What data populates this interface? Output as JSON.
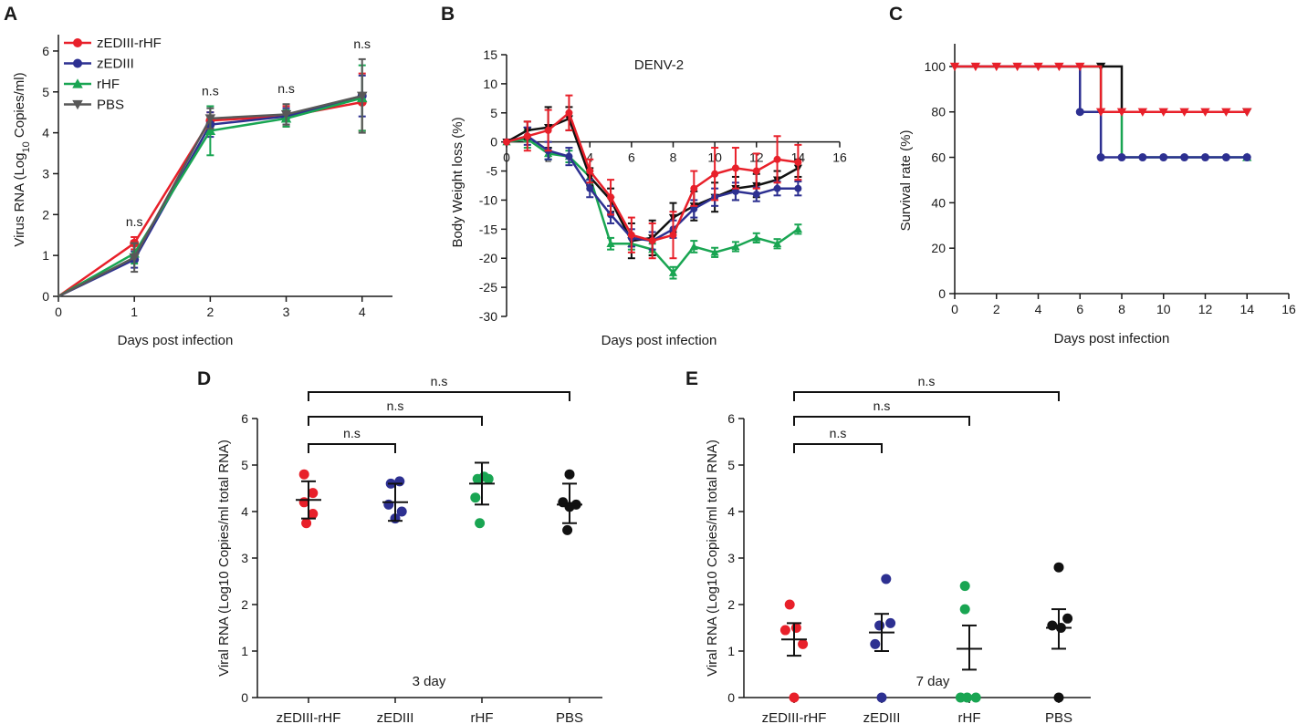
{
  "colors": {
    "red": "#e8202a",
    "blue": "#2d3091",
    "green": "#19a552",
    "gray": "#585858",
    "black": "#111111"
  },
  "chart_data": [
    {
      "panel": "A",
      "type": "line",
      "xlabel": "Days post infection",
      "ylabel_prefix": "Virus RNA (Log",
      "ylabel_sub": "10",
      "ylabel_suffix": " Copies/ml)",
      "xlim": [
        0,
        4.4
      ],
      "ylim": [
        0,
        6.4
      ],
      "xticks": [
        0,
        1,
        2,
        3,
        4
      ],
      "yticks": [
        0,
        1,
        2,
        3,
        4,
        5,
        6
      ],
      "x": [
        0,
        1,
        2,
        3,
        4
      ],
      "series": [
        {
          "name": "zEDIII-rHF",
          "color": "red",
          "marker": "circle",
          "values": [
            0,
            1.3,
            4.3,
            4.4,
            4.75
          ],
          "err": [
            0,
            0.15,
            0.2,
            0.25,
            0.7
          ]
        },
        {
          "name": "zEDIII",
          "color": "blue",
          "marker": "circle",
          "values": [
            0,
            0.9,
            4.2,
            4.4,
            4.9
          ],
          "err": [
            0,
            0.2,
            0.3,
            0.2,
            0.5
          ]
        },
        {
          "name": "rHF",
          "color": "green",
          "marker": "triangle-up",
          "values": [
            0,
            1.05,
            4.05,
            4.35,
            4.85
          ],
          "err": [
            0,
            0.25,
            0.6,
            0.2,
            0.8
          ]
        },
        {
          "name": "PBS",
          "color": "gray",
          "marker": "triangle-down",
          "values": [
            0,
            0.95,
            4.35,
            4.45,
            4.9
          ],
          "err": [
            0,
            0.35,
            0.25,
            0.25,
            0.9
          ]
        }
      ],
      "annotations": [
        {
          "x": 1,
          "text": "n.s"
        },
        {
          "x": 2,
          "text": "n.s"
        },
        {
          "x": 3,
          "text": "n.s"
        },
        {
          "x": 4,
          "text": "n.s"
        }
      ]
    },
    {
      "panel": "B",
      "type": "line",
      "title": "DENV-2",
      "xlabel": "Days post infection",
      "ylabel": "Body Weight loss (%)",
      "xlim": [
        0,
        16
      ],
      "ylim": [
        -30,
        15
      ],
      "xticks": [
        0,
        2,
        4,
        6,
        8,
        10,
        12,
        14,
        16
      ],
      "xtick_labels": [
        "0",
        "2",
        "4",
        "6",
        "8",
        "10",
        "12",
        "14",
        "16"
      ],
      "yticks": [
        -30,
        -25,
        -20,
        -15,
        -10,
        -5,
        0,
        5,
        10,
        15
      ],
      "x": [
        0,
        1,
        2,
        3,
        4,
        5,
        6,
        7,
        8,
        9,
        10,
        11,
        12,
        13,
        14
      ],
      "series": [
        {
          "name": "rHF",
          "color": "green",
          "marker": "triangle-up",
          "values": [
            0,
            0.5,
            -2,
            -2.5,
            -6,
            -17.5,
            -17.5,
            -18.5,
            -22.5,
            -18,
            -19,
            -18,
            -16.5,
            -17.5,
            -15
          ],
          "err": [
            0,
            1.5,
            1,
            1,
            1,
            1,
            1,
            1,
            1,
            1,
            0.8,
            0.8,
            0.8,
            0.8,
            0.8
          ]
        },
        {
          "name": "PBS",
          "color": "black",
          "marker": "triangle-down",
          "values": [
            0,
            2,
            2.5,
            4,
            -6,
            -10,
            -17,
            -16.5,
            -13,
            -11,
            -9.5,
            -8,
            -7.5,
            -6.5,
            -4.5
          ],
          "err": [
            0,
            1.5,
            3.5,
            2,
            1.5,
            2,
            3,
            3,
            2.5,
            2.5,
            2.5,
            2,
            2,
            1.5,
            1.5
          ]
        },
        {
          "name": "zEDIII",
          "color": "blue",
          "marker": "circle",
          "values": [
            0,
            1,
            -1.5,
            -2.5,
            -8,
            -12.5,
            -16.5,
            -17,
            -15,
            -11.5,
            -9.5,
            -8.5,
            -9,
            -8,
            -8
          ],
          "err": [
            0,
            1.5,
            1.5,
            1.5,
            1.5,
            1.5,
            1.5,
            1.5,
            1.5,
            1.5,
            1.5,
            1.5,
            1.2,
            1.2,
            1.2
          ]
        },
        {
          "name": "zEDIII-rHF",
          "color": "red",
          "marker": "circle",
          "values": [
            0,
            1,
            2,
            5,
            -5,
            -9.5,
            -16,
            -17,
            -16,
            -8,
            -5.5,
            -4.5,
            -5,
            -3,
            -3.5
          ],
          "err": [
            0,
            2.5,
            3.5,
            3,
            2,
            3,
            3,
            3,
            4,
            3,
            4.5,
            3.5,
            3,
            4,
            3
          ]
        }
      ]
    },
    {
      "panel": "C",
      "type": "step",
      "xlabel": "Days post infection",
      "ylabel": "Survival rate (%)",
      "xlim": [
        0,
        16
      ],
      "ylim": [
        0,
        110
      ],
      "xticks": [
        0,
        2,
        4,
        6,
        8,
        10,
        12,
        14,
        16
      ],
      "yticks": [
        0,
        20,
        40,
        60,
        80,
        100
      ],
      "series": [
        {
          "name": "PBS",
          "color": "black",
          "marker": "triangle-down",
          "steps": [
            [
              0,
              100
            ],
            [
              8,
              100
            ],
            [
              8,
              80
            ],
            [
              14,
              80
            ]
          ],
          "points": [
            [
              7,
              100
            ],
            [
              14,
              80
            ]
          ]
        },
        {
          "name": "rHF",
          "color": "green",
          "marker": "triangle-up",
          "steps": [
            [
              0,
              100
            ],
            [
              7,
              100
            ],
            [
              7,
              80
            ],
            [
              8,
              80
            ],
            [
              8,
              60
            ],
            [
              14,
              60
            ]
          ],
          "points": [
            [
              14,
              60
            ]
          ]
        },
        {
          "name": "zEDIII",
          "color": "blue",
          "marker": "circle",
          "steps": [
            [
              0,
              100
            ],
            [
              6,
              100
            ],
            [
              6,
              80
            ],
            [
              7,
              80
            ],
            [
              7,
              60
            ],
            [
              14,
              60
            ]
          ],
          "points": [
            [
              6,
              80
            ],
            [
              7,
              60
            ],
            [
              8,
              60
            ],
            [
              9,
              60
            ],
            [
              10,
              60
            ],
            [
              11,
              60
            ],
            [
              12,
              60
            ],
            [
              13,
              60
            ],
            [
              14,
              60
            ]
          ]
        },
        {
          "name": "zEDIII-rHF",
          "color": "red",
          "marker": "triangle-down",
          "steps": [
            [
              0,
              100
            ],
            [
              7,
              100
            ],
            [
              7,
              80
            ],
            [
              14,
              80
            ]
          ],
          "points": [
            [
              0,
              100
            ],
            [
              1,
              100
            ],
            [
              2,
              100
            ],
            [
              3,
              100
            ],
            [
              4,
              100
            ],
            [
              5,
              100
            ],
            [
              6,
              100
            ],
            [
              7,
              80
            ],
            [
              8,
              80
            ],
            [
              9,
              80
            ],
            [
              10,
              80
            ],
            [
              11,
              80
            ],
            [
              12,
              80
            ],
            [
              13,
              80
            ],
            [
              14,
              80
            ]
          ]
        }
      ]
    },
    {
      "panel": "D",
      "type": "scatter",
      "annotation": "3 day",
      "ylabel": "Viral RNA (Log10 Copies/ml total RNA)",
      "ylim": [
        0,
        6
      ],
      "yticks": [
        0,
        1,
        2,
        3,
        4,
        5,
        6
      ],
      "categories": [
        "zEDIII-rHF",
        "zEDIII",
        "rHF",
        "PBS"
      ],
      "category_colors": [
        "red",
        "blue",
        "green",
        "black"
      ],
      "points": [
        [
          {
            "dx": -0.1,
            "y": 4.8
          },
          {
            "dx": 0.1,
            "y": 4.4
          },
          {
            "dx": -0.1,
            "y": 4.2
          },
          {
            "dx": 0.1,
            "y": 3.95
          },
          {
            "dx": -0.05,
            "y": 3.75
          }
        ],
        [
          {
            "dx": -0.1,
            "y": 4.6
          },
          {
            "dx": 0.1,
            "y": 4.65
          },
          {
            "dx": -0.15,
            "y": 4.15
          },
          {
            "dx": 0.15,
            "y": 4.0
          },
          {
            "dx": 0.0,
            "y": 3.85
          }
        ],
        [
          {
            "dx": -0.1,
            "y": 4.7
          },
          {
            "dx": 0.05,
            "y": 4.75
          },
          {
            "dx": 0.15,
            "y": 4.7
          },
          {
            "dx": -0.15,
            "y": 4.3
          },
          {
            "dx": -0.05,
            "y": 3.75
          }
        ],
        [
          {
            "dx": 0.0,
            "y": 4.8
          },
          {
            "dx": -0.15,
            "y": 4.2
          },
          {
            "dx": 0.15,
            "y": 4.15
          },
          {
            "dx": 0.0,
            "y": 4.1
          },
          {
            "dx": -0.05,
            "y": 3.6
          }
        ]
      ],
      "mean": [
        4.25,
        4.2,
        4.6,
        4.15
      ],
      "sem_low": [
        3.85,
        3.8,
        4.15,
        3.75
      ],
      "sem_high": [
        4.65,
        4.6,
        5.05,
        4.6
      ],
      "brackets": [
        {
          "to": 1,
          "text": "n.s"
        },
        {
          "to": 2,
          "text": "n.s"
        },
        {
          "to": 3,
          "text": "n.s"
        }
      ]
    },
    {
      "panel": "E",
      "type": "scatter",
      "annotation": "7 day",
      "ylabel": "Viral RNA (Log10 Copies/ml total RNA)",
      "ylim": [
        0,
        6
      ],
      "yticks": [
        0,
        1,
        2,
        3,
        4,
        5,
        6
      ],
      "categories": [
        "zEDIII-rHF",
        "zEDIII",
        "rHF",
        "PBS"
      ],
      "category_colors": [
        "red",
        "blue",
        "green",
        "black"
      ],
      "points": [
        [
          {
            "dx": -0.1,
            "y": 2.0
          },
          {
            "dx": -0.2,
            "y": 1.45
          },
          {
            "dx": 0.05,
            "y": 1.5
          },
          {
            "dx": 0.2,
            "y": 1.15
          },
          {
            "dx": 0.0,
            "y": 0.0
          }
        ],
        [
          {
            "dx": 0.1,
            "y": 2.55
          },
          {
            "dx": -0.05,
            "y": 1.55
          },
          {
            "dx": 0.2,
            "y": 1.6
          },
          {
            "dx": -0.15,
            "y": 1.15
          },
          {
            "dx": 0.0,
            "y": 0.0
          }
        ],
        [
          {
            "dx": -0.1,
            "y": 2.4
          },
          {
            "dx": -0.1,
            "y": 1.9
          },
          {
            "dx": -0.05,
            "y": 0.0
          },
          {
            "dx": 0.15,
            "y": 0.0
          },
          {
            "dx": -0.2,
            "y": 0.0
          }
        ],
        [
          {
            "dx": 0.0,
            "y": 2.8
          },
          {
            "dx": 0.2,
            "y": 1.7
          },
          {
            "dx": -0.15,
            "y": 1.55
          },
          {
            "dx": 0.05,
            "y": 1.5
          },
          {
            "dx": 0.0,
            "y": 0.0
          }
        ]
      ],
      "mean": [
        1.25,
        1.4,
        1.05,
        1.5
      ],
      "sem_low": [
        0.9,
        1.0,
        0.6,
        1.05
      ],
      "sem_high": [
        1.6,
        1.8,
        1.55,
        1.9
      ],
      "brackets": [
        {
          "to": 1,
          "text": "n.s"
        },
        {
          "to": 2,
          "text": "n.s"
        },
        {
          "to": 3,
          "text": "n.s"
        }
      ]
    }
  ]
}
